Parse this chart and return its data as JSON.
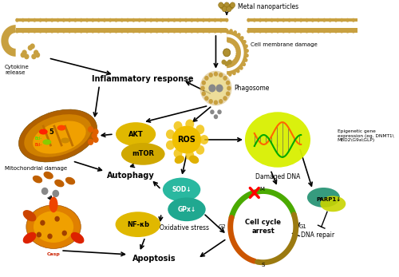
{
  "bg_color": "#ffffff",
  "labels": {
    "metal_nanoparticles": "Metal nanoparticles",
    "cell_membrane_damage": "Cell membrane damage",
    "phagosome": "Phagosome",
    "cytokine_release": "Cytokine\nrelease",
    "inflammatory_response": "Inflammatory response",
    "mitochondrial_damage": "Mitochondrial damage",
    "autophagy": "Autophagy",
    "ros": "ROS",
    "damaged_dna": "Damaged DNA",
    "epigenetic": "Epigenetic gene\nexpression (eg. DNMT1\\\nMBD2\\G9a\\GLP)",
    "akt": "AKT",
    "mtor": "mTOR",
    "sod": "SOD↓",
    "gpx": "GPx↓",
    "oxidative_stress": "Oxidative stress",
    "nfkb": "NF-κb",
    "cell_cycle": "Cell cycle\narrest",
    "apoptosis": "Apoptosis",
    "dna_repair": "DNA repair",
    "parp1": "PARP1↓"
  }
}
